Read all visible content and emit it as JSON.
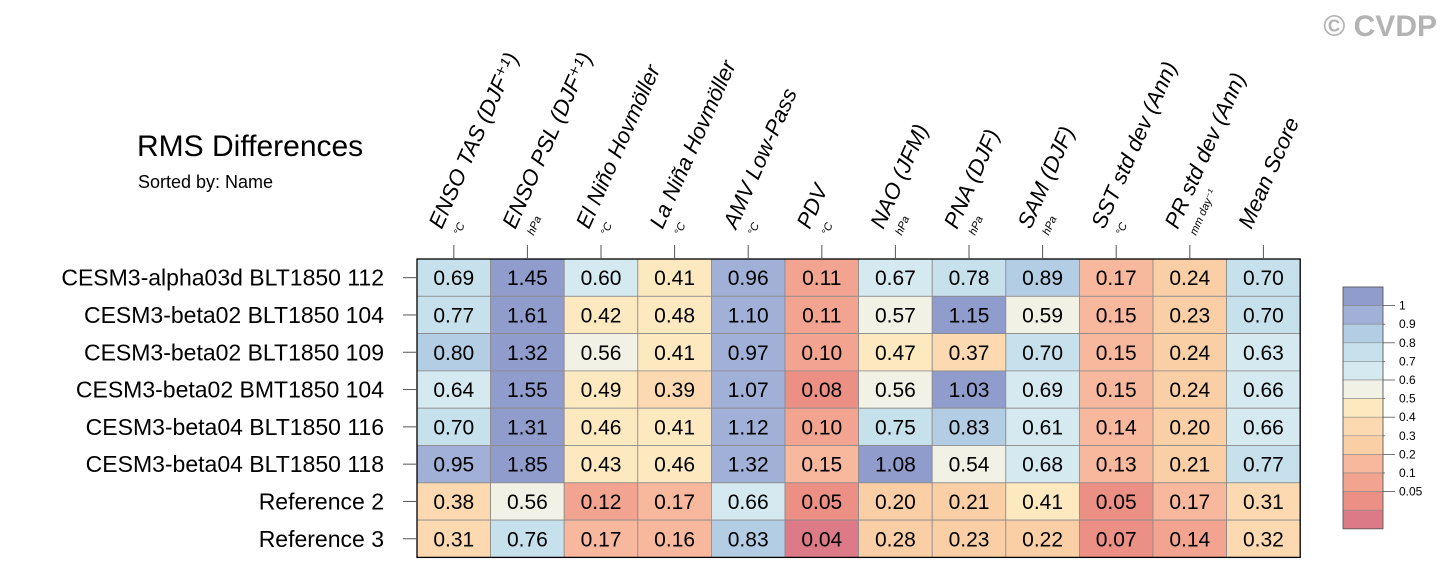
{
  "title": "RMS Differences",
  "subtitle": "Sorted by: Name",
  "watermark": "© CVDP",
  "chart_data": {
    "type": "heatmap",
    "rows": [
      "CESM3-alpha03d BLT1850 112",
      "CESM3-beta02 BLT1850 104",
      "CESM3-beta02 BLT1850 109",
      "CESM3-beta02 BMT1850 104",
      "CESM3-beta04 BLT1850 116",
      "CESM3-beta04 BLT1850 118",
      "Reference 2",
      "Reference 3"
    ],
    "columns": [
      {
        "label": "ENSO TAS (DJF⁺¹)",
        "unit": "°C"
      },
      {
        "label": "ENSO PSL (DJF⁺¹)",
        "unit": "hPa"
      },
      {
        "label": "El Niño Hovmöller",
        "unit": "°C"
      },
      {
        "label": "La Niña Hovmöller",
        "unit": "°C"
      },
      {
        "label": "AMV Low-Pass",
        "unit": "°C"
      },
      {
        "label": "PDV",
        "unit": "°C"
      },
      {
        "label": "NAO (JFM)",
        "unit": "hPa"
      },
      {
        "label": "PNA (DJF)",
        "unit": "hPa"
      },
      {
        "label": "SAM (DJF)",
        "unit": "hPa"
      },
      {
        "label": "SST std dev (Ann)",
        "unit": "°C"
      },
      {
        "label": "PR std dev (Ann)",
        "unit": "mm day⁻¹"
      },
      {
        "label": "Mean Score",
        "unit": ""
      }
    ],
    "values": [
      [
        "0.69",
        "1.45",
        "0.60",
        "0.41",
        "0.96",
        "0.11",
        "0.67",
        "0.78",
        "0.89",
        "0.17",
        "0.24",
        "0.70"
      ],
      [
        "0.77",
        "1.61",
        "0.42",
        "0.48",
        "1.10",
        "0.11",
        "0.57",
        "1.15",
        "0.59",
        "0.15",
        "0.23",
        "0.70"
      ],
      [
        "0.80",
        "1.32",
        "0.56",
        "0.41",
        "0.97",
        "0.10",
        "0.47",
        "0.37",
        "0.70",
        "0.15",
        "0.24",
        "0.63"
      ],
      [
        "0.64",
        "1.55",
        "0.49",
        "0.39",
        "1.07",
        "0.08",
        "0.56",
        "1.03",
        "0.69",
        "0.15",
        "0.24",
        "0.66"
      ],
      [
        "0.70",
        "1.31",
        "0.46",
        "0.41",
        "1.12",
        "0.10",
        "0.75",
        "0.83",
        "0.61",
        "0.14",
        "0.20",
        "0.66"
      ],
      [
        "0.95",
        "1.85",
        "0.43",
        "0.46",
        "1.32",
        "0.15",
        "1.08",
        "0.54",
        "0.68",
        "0.13",
        "0.21",
        "0.77"
      ],
      [
        "0.38",
        "0.56",
        "0.12",
        "0.17",
        "0.66",
        "0.05",
        "0.20",
        "0.21",
        "0.41",
        "0.05",
        "0.17",
        "0.31"
      ],
      [
        "0.31",
        "0.76",
        "0.17",
        "0.16",
        "0.83",
        "0.04",
        "0.28",
        "0.23",
        "0.22",
        "0.07",
        "0.14",
        "0.32"
      ]
    ],
    "cell_colors": [
      [
        "#c6e0ec",
        "#8f9ccc",
        "#d5e9f1",
        "#fde9c0",
        "#a0b0d6",
        "#f2a490",
        "#d5e9f1",
        "#c6e0ec",
        "#b3cde4",
        "#f7b89d",
        "#fbcfa6",
        "#c6e0ec"
      ],
      [
        "#c6e0ec",
        "#8f9ccc",
        "#fde9c0",
        "#fde9c0",
        "#a0b0d6",
        "#f2a490",
        "#f1f1e6",
        "#8f9ccc",
        "#f1f1e6",
        "#f7b89d",
        "#fbcfa6",
        "#c6e0ec"
      ],
      [
        "#b3cde4",
        "#8f9ccc",
        "#f1f1e6",
        "#fde9c0",
        "#a0b0d6",
        "#f2a490",
        "#fde9c0",
        "#fcd9b0",
        "#c6e0ec",
        "#f7b89d",
        "#fbcfa6",
        "#d5e9f1"
      ],
      [
        "#d5e9f1",
        "#8f9ccc",
        "#fde9c0",
        "#fcd9b0",
        "#a0b0d6",
        "#ec8f85",
        "#f1f1e6",
        "#8f9ccc",
        "#d5e9f1",
        "#f7b89d",
        "#fbcfa6",
        "#d5e9f1"
      ],
      [
        "#c6e0ec",
        "#8f9ccc",
        "#fde9c0",
        "#fde9c0",
        "#a0b0d6",
        "#f2a490",
        "#c6e0ec",
        "#b3cde4",
        "#d5e9f1",
        "#f7b89d",
        "#fbcfa6",
        "#d5e9f1"
      ],
      [
        "#a0b0d6",
        "#8f9ccc",
        "#fde9c0",
        "#fde9c0",
        "#a0b0d6",
        "#f7b89d",
        "#8f9ccc",
        "#f1f1e6",
        "#d5e9f1",
        "#f7b89d",
        "#fbcfa6",
        "#c6e0ec"
      ],
      [
        "#fcd9b0",
        "#f1f1e6",
        "#f2a490",
        "#f7b89d",
        "#d5e9f1",
        "#ec8f85",
        "#fbcfa6",
        "#fbcfa6",
        "#fde9c0",
        "#ec8f85",
        "#f7b89d",
        "#fcd9b0"
      ],
      [
        "#fcd9b0",
        "#c6e0ec",
        "#f7b89d",
        "#f7b89d",
        "#b3cde4",
        "#dd7a87",
        "#fbcfa6",
        "#fbcfa6",
        "#fbcfa6",
        "#ec8f85",
        "#f2a490",
        "#fcd9b0"
      ]
    ],
    "legend": {
      "colors": [
        "#dd7a87",
        "#ec8f85",
        "#f2a490",
        "#f7b89d",
        "#fbcfa6",
        "#fcd9b0",
        "#fde9c0",
        "#f1f1e6",
        "#d5e9f1",
        "#c6e0ec",
        "#b3cde4",
        "#a0b0d6",
        "#8f9ccc"
      ],
      "labels": [
        "0.05",
        "0.1",
        "0.2",
        "0.3",
        "0.4",
        "0.5",
        "0.6",
        "0.7",
        "0.8",
        "0.9",
        "1"
      ],
      "placement": "right"
    }
  }
}
